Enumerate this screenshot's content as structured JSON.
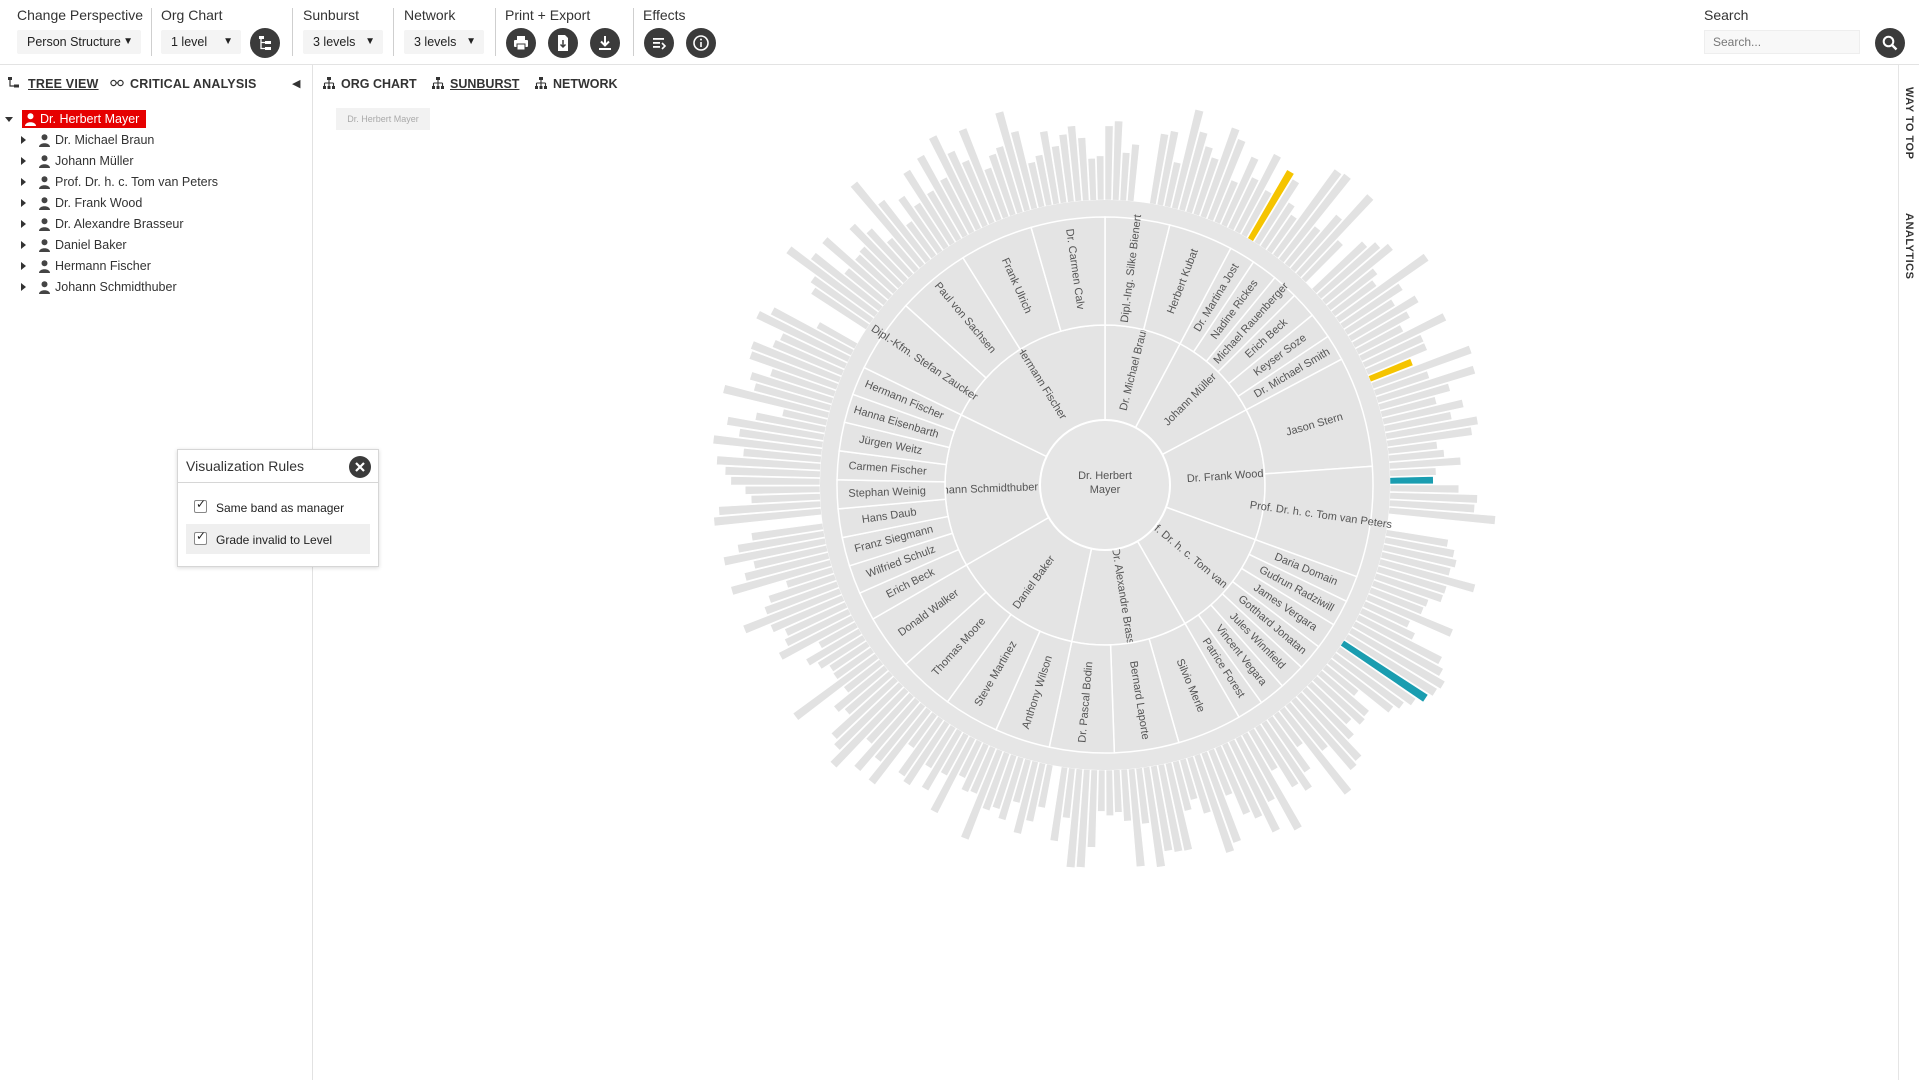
{
  "toolbar": {
    "perspective": {
      "label": "Change Perspective",
      "value": "Person Structure"
    },
    "org_chart": {
      "label": "Org Chart",
      "value": "1 level",
      "button_icon": "hierarchy-icon"
    },
    "sunburst": {
      "label": "Sunburst",
      "value": "3 levels"
    },
    "network": {
      "label": "Network",
      "value": "3 levels"
    },
    "print_export": {
      "label": "Print + Export",
      "buttons": [
        "print-icon",
        "pdf-export-icon",
        "download-icon"
      ]
    },
    "effects": {
      "label": "Effects",
      "buttons": [
        "effects-list-icon",
        "info-icon"
      ]
    },
    "search": {
      "label": "Search",
      "placeholder": "Search...",
      "value": ""
    }
  },
  "left_panel": {
    "tabs": [
      {
        "label": "TREE VIEW",
        "active": true,
        "icon": "tree-view-icon"
      },
      {
        "label": "CRITICAL ANALYSIS",
        "active": false,
        "icon": "glasses-icon"
      }
    ],
    "tree": {
      "root": "Dr. Herbert Mayer",
      "children": [
        "Dr. Michael Braun",
        "Johann Müller",
        "Prof. Dr. h. c. Tom van Peters",
        "Dr. Frank Wood",
        "Dr. Alexandre Brasseur",
        "Daniel Baker",
        "Hermann Fischer",
        "Johann Schmidthuber"
      ]
    }
  },
  "viz_rules": {
    "title": "Visualization Rules",
    "rules": [
      {
        "label": "Same band as manager",
        "checked": true
      },
      {
        "label": "Grade invalid to Level",
        "checked": true
      }
    ]
  },
  "main": {
    "tabs": [
      {
        "label": "ORG CHART",
        "active": false,
        "icon": "org-chart-icon"
      },
      {
        "label": "SUNBURST",
        "active": true,
        "icon": "org-chart-icon"
      },
      {
        "label": "NETWORK",
        "active": false,
        "icon": "org-chart-icon"
      }
    ],
    "breadcrumb": "Dr. Herbert Mayer"
  },
  "right_rail": {
    "tabs": [
      "WAY TO TOP",
      "ANALYTICS"
    ]
  },
  "colors": {
    "selected": "#e60000",
    "teal": "#1a9db0",
    "yellow": "#f5c400",
    "segment": "#e4e4e4",
    "segment_stroke": "#ffffff",
    "text": "#555555"
  },
  "sunburst": {
    "center": "Dr. Herbert Mayer",
    "groups": [
      {
        "name": "Dr. Michael Braun",
        "a0": 0,
        "a1": 28,
        "children": [
          "Dipl.-Ing. Silke Bienert",
          "Herbert Kubat"
        ]
      },
      {
        "name": "Johann Müller",
        "a0": 28,
        "a1": 62,
        "children": [
          "Dr. Martina Jost",
          "Nadine Rickes",
          "Michael Rauenberger",
          "Erich Beck",
          "Keyser Soze",
          "Dr. Michael Smith"
        ]
      },
      {
        "name": "Dr. Frank Wood",
        "a0": 62,
        "a1": 110,
        "children": [
          "Jason Stern",
          "Prof. Dr. h. c. Tom van Peters"
        ]
      },
      {
        "name": "Prof. Dr. h. c. Tom van Peters",
        "a0": 110,
        "a1": 150,
        "children": [
          "Daria Domain",
          "Gudrun Radziwill",
          "James Vergara",
          "Gotthard Jonatan",
          "Jules Winnfield",
          "Vincent Vegara",
          "Patrice Forest"
        ]
      },
      {
        "name": "Dr. Alexandre Brasseur",
        "a0": 150,
        "a1": 192,
        "children": [
          "Silvio Merle",
          "Bernard Laporte",
          "Dr. Pascal Bodin"
        ]
      },
      {
        "name": "Daniel Baker",
        "a0": 192,
        "a1": 240,
        "children": [
          "Anthony Wilson",
          "Steve Martinez",
          "Thomas Moore",
          "Donald Walker"
        ]
      },
      {
        "name": "Johann Schmidthuber",
        "a0": 240,
        "a1": 296,
        "children": [
          "Erich Beck",
          "Wilfried Schulz",
          "Franz Siegmann",
          "Hans Daub",
          "Stephan Weinig",
          "Carmen Fischer",
          "Jürgen Weitz",
          "Hanna Eisenbarth",
          "Hermann Fischer"
        ]
      },
      {
        "name": "Hermann Fischer",
        "a0": 296,
        "a1": 360,
        "children": [
          "Dipl.-Kfm. Stefan Zaucker",
          "Paul von Sachsen",
          "Frank Ulrich",
          "Dr. Carmen Calv"
        ]
      }
    ]
  }
}
